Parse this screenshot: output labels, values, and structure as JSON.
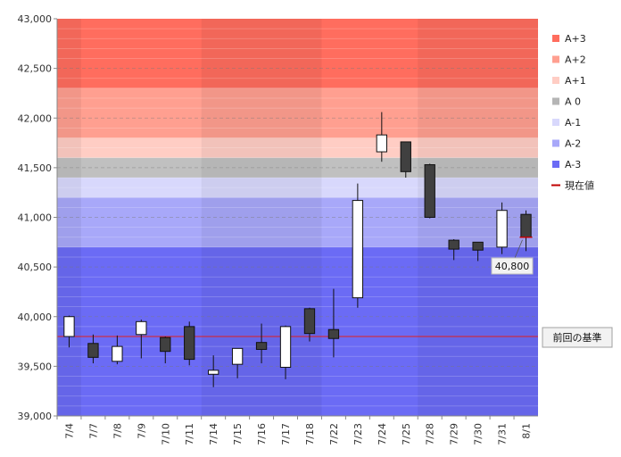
{
  "chart_data": {
    "type": "candlestick",
    "ylim": [
      39000,
      43000
    ],
    "y_ticks": [
      "43,000",
      "42,500",
      "42,000",
      "41,500",
      "41,000",
      "40,500",
      "40,000",
      "39,500",
      "39,000"
    ],
    "y_tick_values": [
      43000,
      42500,
      42000,
      41500,
      41000,
      40500,
      40000,
      39500,
      39000
    ],
    "categories": [
      "7/4",
      "7/7",
      "7/8",
      "7/9",
      "7/10",
      "7/11",
      "7/14",
      "7/15",
      "7/16",
      "7/17",
      "7/18",
      "7/22",
      "7/23",
      "7/24",
      "7/25",
      "7/28",
      "7/29",
      "7/30",
      "7/31",
      "8/1"
    ],
    "ohlc": [
      {
        "open": 39800,
        "high": 40010,
        "low": 39690,
        "close": 40000
      },
      {
        "open": 39730,
        "high": 39820,
        "low": 39530,
        "close": 39590
      },
      {
        "open": 39550,
        "high": 39810,
        "low": 39520,
        "close": 39700
      },
      {
        "open": 39820,
        "high": 39970,
        "low": 39580,
        "close": 39950
      },
      {
        "open": 39790,
        "high": 39800,
        "low": 39530,
        "close": 39650
      },
      {
        "open": 39900,
        "high": 39950,
        "low": 39510,
        "close": 39570
      },
      {
        "open": 39420,
        "high": 39610,
        "low": 39290,
        "close": 39460
      },
      {
        "open": 39520,
        "high": 39670,
        "low": 39380,
        "close": 39680
      },
      {
        "open": 39740,
        "high": 39930,
        "low": 39530,
        "close": 39670
      },
      {
        "open": 39490,
        "high": 39910,
        "low": 39370,
        "close": 39900
      },
      {
        "open": 40080,
        "high": 40090,
        "low": 39750,
        "close": 39830
      },
      {
        "open": 39870,
        "high": 40280,
        "low": 39590,
        "close": 39780
      },
      {
        "open": 40190,
        "high": 41340,
        "low": 40090,
        "close": 41170
      },
      {
        "open": 41660,
        "high": 42060,
        "low": 41560,
        "close": 41830
      },
      {
        "open": 41760,
        "high": 41760,
        "low": 41400,
        "close": 41460
      },
      {
        "open": 41530,
        "high": 41540,
        "low": 40990,
        "close": 41000
      },
      {
        "open": 40770,
        "high": 40780,
        "low": 40570,
        "close": 40680
      },
      {
        "open": 40750,
        "high": 40750,
        "low": 40560,
        "close": 40670
      },
      {
        "open": 40700,
        "high": 41150,
        "low": 40630,
        "close": 41070
      },
      {
        "open": 41030,
        "high": 41070,
        "low": 40660,
        "close": 40800
      }
    ],
    "bands": [
      {
        "name": "A+3",
        "from": 42300,
        "to": 43000,
        "color": "#ff6d5e"
      },
      {
        "name": "A+2",
        "from": 41800,
        "to": 42300,
        "color": "#ff9f90"
      },
      {
        "name": "A+1",
        "from": 41600,
        "to": 41800,
        "color": "#ffcdc4"
      },
      {
        "name": "A 0",
        "from": 41400,
        "to": 41600,
        "color": "#c0c0c0"
      },
      {
        "name": "A-1",
        "from": 41200,
        "to": 41400,
        "color": "#d8d8fc"
      },
      {
        "name": "A-2",
        "from": 40700,
        "to": 41200,
        "color": "#a8a8f9"
      },
      {
        "name": "A-3",
        "from": 39000,
        "to": 40700,
        "color": "#6b6bf5"
      }
    ],
    "legend": [
      {
        "label": "A+3",
        "color": "#ff6d5e",
        "kind": "box"
      },
      {
        "label": "A+2",
        "color": "#ff9f90",
        "kind": "box"
      },
      {
        "label": "A+1",
        "color": "#ffcdc4",
        "kind": "box"
      },
      {
        "label": "A 0",
        "color": "#b5b5b5",
        "kind": "box"
      },
      {
        "label": "A-1",
        "color": "#d8d8fc",
        "kind": "box"
      },
      {
        "label": "A-2",
        "color": "#a8a8f9",
        "kind": "box"
      },
      {
        "label": "A-3",
        "color": "#6b6bf5",
        "kind": "box"
      },
      {
        "label": "現在値",
        "color": "#c00000",
        "kind": "line"
      }
    ],
    "reference_line": {
      "label": "前回の基準",
      "value": 39800,
      "color": "#e02020"
    },
    "current_value": {
      "label": "40,800",
      "value": 40800,
      "category": "8/1"
    },
    "colors": {
      "up_fill": "#ffffff",
      "down_fill": "#404040",
      "candle_stroke": "#111111",
      "grid": "#888888"
    }
  }
}
